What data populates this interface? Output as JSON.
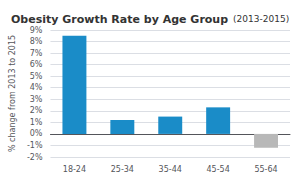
{
  "chart_data": {
    "type": "bar",
    "title": "Obesity Growth Rate by Age Group",
    "subtitle": "(2013-2015)",
    "ylabel": "% change from 2013 to 2015",
    "categories": [
      "18-24",
      "25-34",
      "35-44",
      "45-54",
      "55-64"
    ],
    "values": [
      8.5,
      1.2,
      1.5,
      2.3,
      -1.2
    ],
    "colors": [
      "#1a8cc8",
      "#1a8cc8",
      "#1a8cc8",
      "#1a8cc8",
      "#b8b8b8"
    ],
    "ylim": [
      -2,
      9
    ],
    "yticks": [
      {
        "value": -2,
        "label": "-2%"
      },
      {
        "value": -1,
        "label": "-1%"
      },
      {
        "value": 0,
        "label": "0%"
      },
      {
        "value": 1,
        "label": "1%"
      },
      {
        "value": 2,
        "label": "2%"
      },
      {
        "value": 3,
        "label": "3%"
      },
      {
        "value": 4,
        "label": "4%"
      },
      {
        "value": 5,
        "label": "5%"
      },
      {
        "value": 6,
        "label": "6%"
      },
      {
        "value": 7,
        "label": "7%"
      },
      {
        "value": 8,
        "label": "8%"
      },
      {
        "value": 9,
        "label": "9%"
      }
    ],
    "grid": true
  }
}
